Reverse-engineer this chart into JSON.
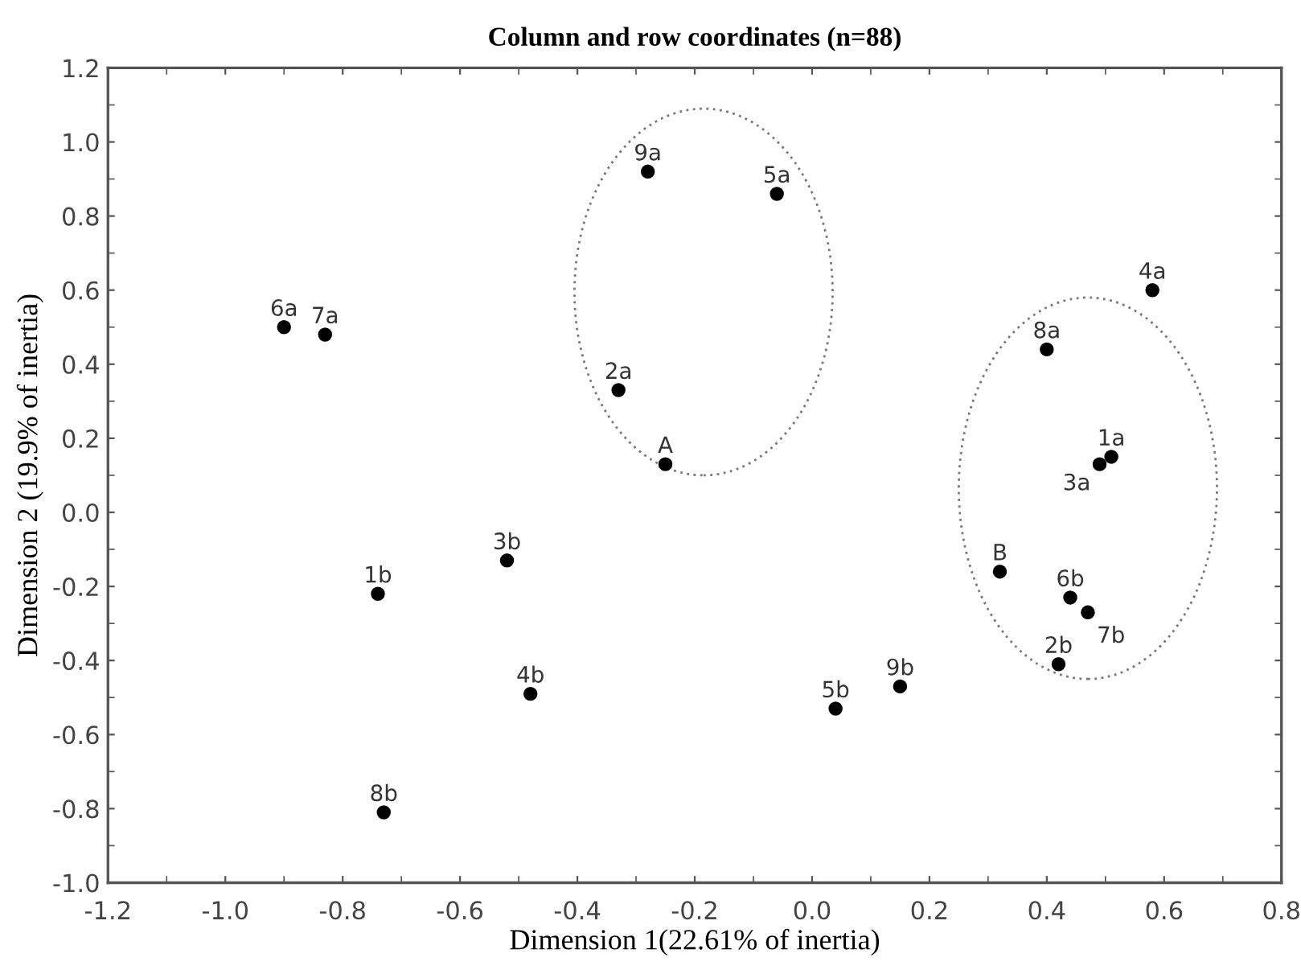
{
  "chart_data": {
    "type": "scatter",
    "title": "Column and row coordinates (n=88)",
    "xlabel": "Dimension 1(22.61% of inertia)",
    "ylabel": "Dimension 2 (19.9% of inertia)",
    "series": [
      {
        "color": "#000000",
        "x": [
          -0.9,
          -0.83,
          -0.28,
          -0.06,
          -0.33,
          -0.25,
          0.58,
          0.4,
          0.51,
          0.49,
          -0.74,
          -0.52,
          -0.48,
          -0.73,
          0.04,
          0.15,
          0.32,
          0.44,
          0.47,
          0.42
        ],
        "values": [
          0.5,
          0.48,
          0.92,
          0.86,
          0.33,
          0.13,
          0.6,
          0.44,
          0.15,
          0.13,
          -0.22,
          -0.13,
          -0.49,
          -0.81,
          -0.53,
          -0.47,
          -0.16,
          -0.23,
          -0.27,
          -0.41
        ]
      }
    ],
    "annotations": [
      {
        "text": "6a",
        "x": -0.9,
        "y": 0.5
      },
      {
        "text": "7a",
        "x": -0.83,
        "y": 0.48
      },
      {
        "text": "9a",
        "x": -0.28,
        "y": 0.92
      },
      {
        "text": "5a",
        "x": -0.06,
        "y": 0.86
      },
      {
        "text": "2a",
        "x": -0.33,
        "y": 0.33
      },
      {
        "text": "A",
        "x": -0.25,
        "y": 0.13
      },
      {
        "text": "4a",
        "x": 0.58,
        "y": 0.6
      },
      {
        "text": "8a",
        "x": 0.4,
        "y": 0.44
      },
      {
        "text": "1a",
        "x": 0.51,
        "y": 0.15
      },
      {
        "text": "3a",
        "x": 0.49,
        "y": 0.13
      },
      {
        "text": "1b",
        "x": -0.74,
        "y": -0.22
      },
      {
        "text": "3b",
        "x": -0.52,
        "y": -0.13
      },
      {
        "text": "4b",
        "x": -0.48,
        "y": -0.49
      },
      {
        "text": "8b",
        "x": -0.73,
        "y": -0.81
      },
      {
        "text": "5b",
        "x": 0.04,
        "y": -0.53
      },
      {
        "text": "9b",
        "x": 0.15,
        "y": -0.47
      },
      {
        "text": "B",
        "x": 0.32,
        "y": -0.16
      },
      {
        "text": "6b",
        "x": 0.44,
        "y": -0.23
      },
      {
        "text": "7b",
        "x": 0.47,
        "y": -0.27
      },
      {
        "text": "2b",
        "x": 0.42,
        "y": -0.41
      }
    ],
    "marker": "circle",
    "xlim": [
      -1.2,
      0.8
    ],
    "xticks": [
      -1.2,
      {
        "value": -1.0,
        "label": "-1.0"
      },
      -0.8,
      -0.6,
      -0.4,
      -0.2,
      {
        "value": 0.0,
        "label": "0.0"
      },
      0.2,
      0.4,
      0.6,
      0.8
    ],
    "ylim": [
      -1.0,
      1.2
    ],
    "yticks": [
      {
        "value": -1.0,
        "label": "-1.0"
      },
      -0.8,
      -0.6,
      -0.4,
      -0.2,
      {
        "value": 0.0,
        "label": "0.0"
      },
      0.2,
      0.4,
      0.6,
      0.8,
      {
        "value": 1.0,
        "label": "1.0"
      },
      1.2
    ],
    "grid": false,
    "legend": false
  }
}
